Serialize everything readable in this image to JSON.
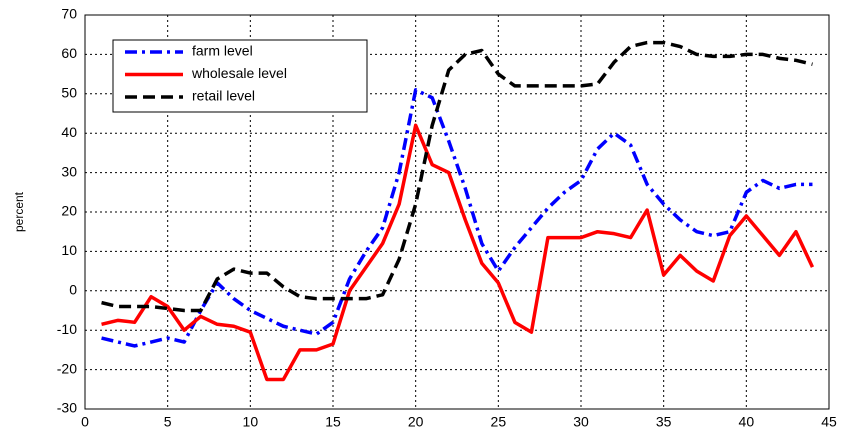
{
  "chart_data": {
    "type": "line",
    "y_label": "percent",
    "x": [
      1,
      2,
      3,
      4,
      5,
      6,
      7,
      8,
      9,
      10,
      11,
      12,
      13,
      14,
      15,
      16,
      17,
      18,
      19,
      20,
      21,
      22,
      23,
      24,
      25,
      26,
      27,
      28,
      29,
      30,
      31,
      32,
      33,
      34,
      35,
      36,
      37,
      38,
      39,
      40,
      41,
      42,
      43,
      44
    ],
    "series": [
      {
        "name": "farm level",
        "color": "#0000ff",
        "style": "dash-dot",
        "values": [
          -12,
          -13,
          -14,
          -13,
          -12,
          -13,
          -5,
          2,
          -2,
          -5,
          -7,
          -9,
          -10,
          -11,
          -8,
          3,
          10,
          16,
          30,
          51,
          49,
          38,
          26,
          12,
          5,
          11,
          16,
          21,
          25,
          28,
          36,
          40,
          37,
          27,
          22,
          18,
          15,
          14,
          15,
          25,
          28,
          26,
          27,
          27
        ]
      },
      {
        "name": "wholesale level",
        "color": "#ff0000",
        "style": "solid",
        "values": [
          -8.5,
          -7.5,
          -8,
          -1.5,
          -4,
          -10,
          -6.5,
          -8.5,
          -9,
          -10.5,
          -22.5,
          -22.5,
          -15,
          -15,
          -13.5,
          0,
          6,
          12,
          22,
          42,
          32,
          30,
          18,
          7,
          2,
          -8,
          -10.5,
          13.5,
          13.5,
          13.5,
          15,
          14.5,
          13.5,
          20.5,
          4,
          9,
          5,
          2.5,
          14,
          19,
          14,
          9,
          15,
          6
        ]
      },
      {
        "name": "retail level",
        "color": "#000000",
        "style": "dashed",
        "values": [
          -3,
          -4,
          -4,
          -4,
          -4.5,
          -5,
          -5,
          3,
          5.5,
          4.5,
          4.5,
          1,
          -1.5,
          -2,
          -2,
          -2,
          -2,
          -1,
          8,
          22,
          42,
          56,
          60,
          61,
          55,
          52,
          52,
          52,
          52,
          52,
          52.5,
          58,
          62,
          63,
          63,
          62,
          60,
          59.5,
          59.5,
          60,
          60,
          59,
          58.5,
          57.5
        ]
      }
    ],
    "xlim": [
      0,
      45
    ],
    "xticks": [
      0,
      5,
      10,
      15,
      20,
      25,
      30,
      35,
      40,
      45
    ],
    "ylim": [
      -30,
      70
    ],
    "yticks": [
      -30,
      -20,
      -10,
      0,
      10,
      20,
      30,
      40,
      50,
      60,
      70
    ],
    "grid": true,
    "legend": "upper-left"
  }
}
